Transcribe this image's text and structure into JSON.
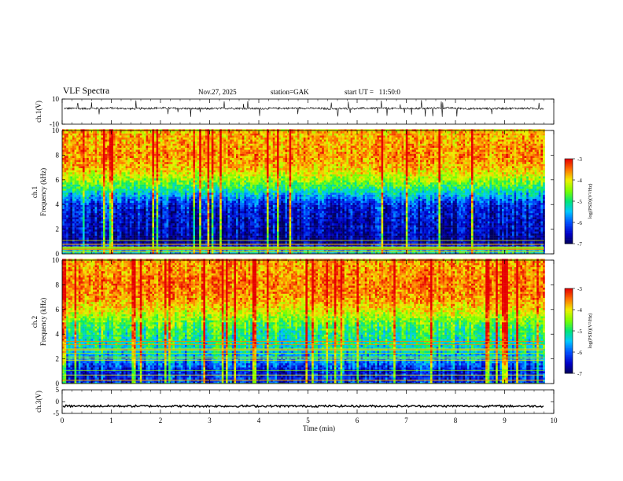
{
  "header": {
    "title": "VLF Spectra",
    "date": "Nov.27, 2025",
    "station": "station=GAK",
    "start": "start UT =   11:50:0"
  },
  "chart_data": [
    {
      "type": "line",
      "ylabel": "ch.1(V)",
      "ylim": [
        -10,
        10
      ],
      "ytick_labels": [
        "10",
        "-10"
      ],
      "xlim": [
        0,
        10
      ],
      "series_color": "#000000",
      "baseline": 2.5,
      "x": [
        0.0,
        0.5,
        1.0,
        1.5,
        2.0,
        2.5,
        3.0,
        3.5,
        4.0,
        4.5,
        5.0,
        5.5,
        6.0,
        6.5,
        7.0,
        7.5,
        8.0,
        8.5,
        9.0,
        9.5,
        9.8
      ],
      "y": [
        2.6,
        2.4,
        2.8,
        2.2,
        2.9,
        2.5,
        2.3,
        2.7,
        2.4,
        2.6,
        2.8,
        2.3,
        2.5,
        2.7,
        2.4,
        2.6,
        2.9,
        2.3,
        2.5,
        2.6,
        2.4
      ]
    },
    {
      "type": "heatmap",
      "ylabel": "ch.1 Frequency (kHz)",
      "ylim": [
        0,
        10
      ],
      "ytick_labels": [
        "0",
        "2",
        "4",
        "6",
        "8",
        "10"
      ],
      "xlim": [
        0,
        10
      ],
      "data_end": 9.8,
      "colorbar": {
        "label": "log(PSD)(V²/Hz)",
        "range": [
          -7,
          -3
        ],
        "tick_labels": [
          "-3",
          "-4",
          "-5",
          "-6",
          "-7"
        ]
      },
      "freq_band_kHz": [
        0,
        1,
        2,
        3,
        4,
        5,
        5.5,
        6,
        7,
        8,
        9,
        10
      ],
      "band_log_psd": [
        -5.3,
        -6.9,
        -6.6,
        -6.5,
        -6.3,
        -5.3,
        -4.8,
        -4.4,
        -3.8,
        -3.6,
        -3.7,
        -3.8
      ]
    },
    {
      "type": "heatmap",
      "ylabel": "ch.2 Frequency (kHz)",
      "ylim": [
        0,
        10
      ],
      "ytick_labels": [
        "0",
        "2",
        "4",
        "6",
        "8",
        "10"
      ],
      "xlim": [
        0,
        10
      ],
      "data_end": 9.8,
      "colorbar": {
        "label": "log(PSD)(V²/Hz)",
        "range": [
          -7,
          -3
        ],
        "tick_labels": [
          "-3",
          "-4",
          "-5",
          "-6",
          "-7"
        ]
      },
      "freq_band_kHz": [
        0,
        1,
        2,
        3,
        4,
        5,
        6,
        7,
        8,
        9,
        10
      ],
      "band_log_psd": [
        -6.2,
        -6.4,
        -5.6,
        -5.2,
        -5.0,
        -4.6,
        -4.0,
        -3.6,
        -3.5,
        -3.6,
        -3.7
      ]
    },
    {
      "type": "line",
      "ylabel": "ch.3(V)",
      "ylim": [
        -5,
        5
      ],
      "ytick_labels": [
        "5",
        "0",
        "-5"
      ],
      "xlim": [
        0,
        10
      ],
      "xlabel": "Time (min)",
      "xtick_labels": [
        "0",
        "1",
        "2",
        "3",
        "4",
        "5",
        "6",
        "7",
        "8",
        "9",
        "10"
      ],
      "series_color": "#000000",
      "x": [
        0,
        9.8
      ],
      "y": [
        -1.9,
        -1.9
      ]
    }
  ]
}
